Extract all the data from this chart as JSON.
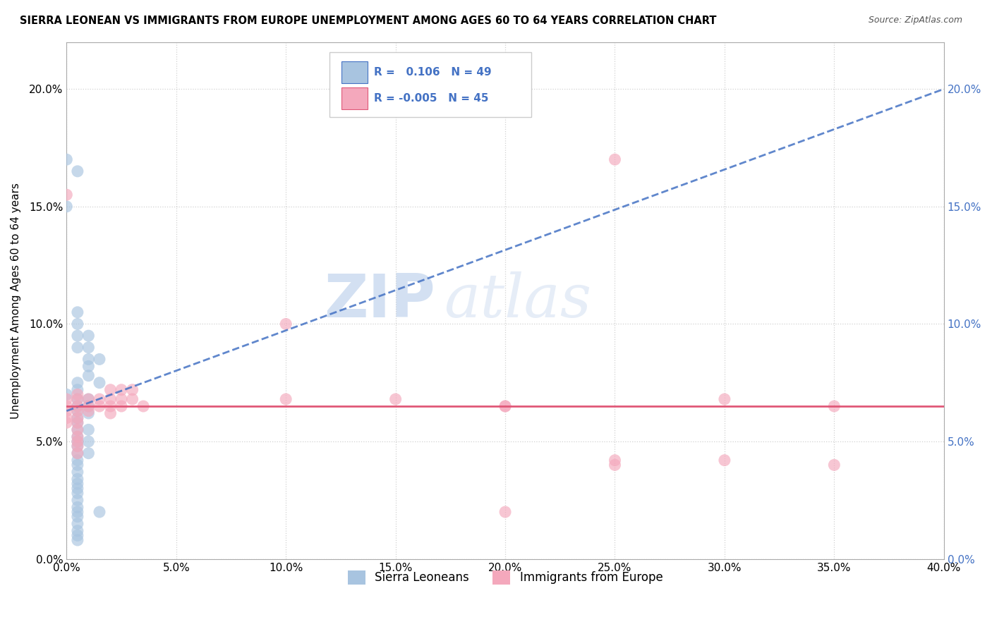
{
  "title": "SIERRA LEONEAN VS IMMIGRANTS FROM EUROPE UNEMPLOYMENT AMONG AGES 60 TO 64 YEARS CORRELATION CHART",
  "source": "Source: ZipAtlas.com",
  "ylabel": "Unemployment Among Ages 60 to 64 years",
  "xmin": 0.0,
  "xmax": 0.4,
  "ymin": 0.0,
  "ymax": 0.22,
  "xticks": [
    0.0,
    0.05,
    0.1,
    0.15,
    0.2,
    0.25,
    0.3,
    0.35,
    0.4
  ],
  "yticks": [
    0.0,
    0.05,
    0.1,
    0.15,
    0.2
  ],
  "ytick_labels": [
    "0.0%",
    "5.0%",
    "10.0%",
    "15.0%",
    "20.0%"
  ],
  "xtick_labels": [
    "0.0%",
    "5.0%",
    "10.0%",
    "15.0%",
    "20.0%",
    "25.0%",
    "30.0%",
    "35.0%",
    "40.0%"
  ],
  "legend_labels": [
    "Sierra Leoneans",
    "Immigrants from Europe"
  ],
  "R_blue": 0.106,
  "N_blue": 49,
  "R_pink": -0.005,
  "N_pink": 45,
  "blue_color": "#a8c4e0",
  "pink_color": "#f4a8bc",
  "blue_line_color": "#4472c4",
  "pink_line_color": "#e05878",
  "blue_scatter": [
    [
      0.0,
      0.17
    ],
    [
      0.005,
      0.165
    ],
    [
      0.0,
      0.15
    ],
    [
      0.005,
      0.105
    ],
    [
      0.005,
      0.1
    ],
    [
      0.005,
      0.095
    ],
    [
      0.005,
      0.09
    ],
    [
      0.01,
      0.095
    ],
    [
      0.01,
      0.09
    ],
    [
      0.01,
      0.085
    ],
    [
      0.01,
      0.082
    ],
    [
      0.01,
      0.078
    ],
    [
      0.0,
      0.07
    ],
    [
      0.015,
      0.085
    ],
    [
      0.005,
      0.075
    ],
    [
      0.015,
      0.075
    ],
    [
      0.005,
      0.072
    ],
    [
      0.005,
      0.068
    ],
    [
      0.005,
      0.065
    ],
    [
      0.005,
      0.063
    ],
    [
      0.005,
      0.06
    ],
    [
      0.005,
      0.058
    ],
    [
      0.005,
      0.055
    ],
    [
      0.005,
      0.052
    ],
    [
      0.005,
      0.05
    ],
    [
      0.005,
      0.048
    ],
    [
      0.005,
      0.045
    ],
    [
      0.005,
      0.042
    ],
    [
      0.005,
      0.04
    ],
    [
      0.005,
      0.037
    ],
    [
      0.005,
      0.034
    ],
    [
      0.005,
      0.032
    ],
    [
      0.005,
      0.03
    ],
    [
      0.005,
      0.028
    ],
    [
      0.005,
      0.025
    ],
    [
      0.005,
      0.022
    ],
    [
      0.005,
      0.02
    ],
    [
      0.005,
      0.018
    ],
    [
      0.005,
      0.015
    ],
    [
      0.005,
      0.012
    ],
    [
      0.005,
      0.01
    ],
    [
      0.005,
      0.008
    ],
    [
      0.01,
      0.068
    ],
    [
      0.01,
      0.065
    ],
    [
      0.01,
      0.062
    ],
    [
      0.01,
      0.055
    ],
    [
      0.01,
      0.05
    ],
    [
      0.01,
      0.045
    ],
    [
      0.015,
      0.02
    ]
  ],
  "pink_scatter": [
    [
      0.0,
      0.155
    ],
    [
      0.0,
      0.068
    ],
    [
      0.0,
      0.065
    ],
    [
      0.0,
      0.063
    ],
    [
      0.0,
      0.06
    ],
    [
      0.0,
      0.058
    ],
    [
      0.005,
      0.07
    ],
    [
      0.005,
      0.068
    ],
    [
      0.005,
      0.065
    ],
    [
      0.005,
      0.063
    ],
    [
      0.005,
      0.06
    ],
    [
      0.005,
      0.058
    ],
    [
      0.005,
      0.055
    ],
    [
      0.005,
      0.052
    ],
    [
      0.005,
      0.05
    ],
    [
      0.005,
      0.048
    ],
    [
      0.005,
      0.045
    ],
    [
      0.01,
      0.068
    ],
    [
      0.01,
      0.065
    ],
    [
      0.01,
      0.063
    ],
    [
      0.015,
      0.068
    ],
    [
      0.015,
      0.065
    ],
    [
      0.02,
      0.072
    ],
    [
      0.02,
      0.068
    ],
    [
      0.02,
      0.065
    ],
    [
      0.02,
      0.062
    ],
    [
      0.025,
      0.072
    ],
    [
      0.025,
      0.068
    ],
    [
      0.025,
      0.065
    ],
    [
      0.03,
      0.072
    ],
    [
      0.03,
      0.068
    ],
    [
      0.035,
      0.065
    ],
    [
      0.1,
      0.068
    ],
    [
      0.1,
      0.1
    ],
    [
      0.15,
      0.068
    ],
    [
      0.2,
      0.02
    ],
    [
      0.2,
      0.065
    ],
    [
      0.2,
      0.065
    ],
    [
      0.25,
      0.042
    ],
    [
      0.25,
      0.04
    ],
    [
      0.25,
      0.17
    ],
    [
      0.3,
      0.068
    ],
    [
      0.3,
      0.042
    ],
    [
      0.35,
      0.04
    ],
    [
      0.35,
      0.065
    ]
  ],
  "blue_trend_x": [
    0.0,
    0.4
  ],
  "blue_trend_y": [
    0.063,
    0.2
  ],
  "pink_trend_y": [
    0.065,
    0.065
  ]
}
